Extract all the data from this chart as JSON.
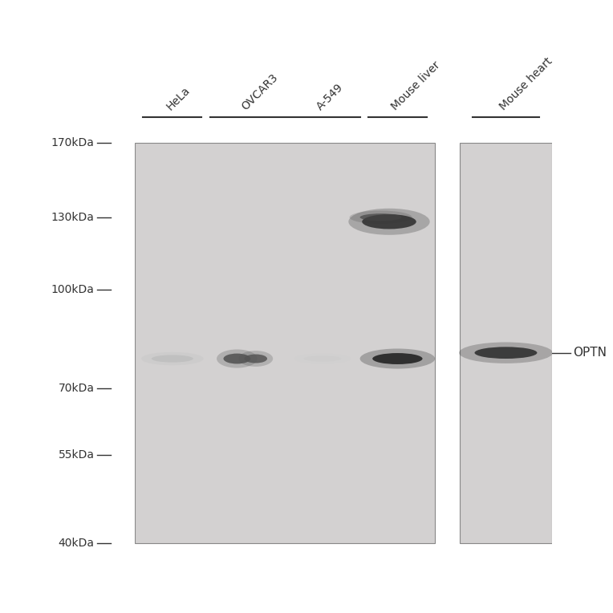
{
  "background_color": "#ffffff",
  "gel_bg_color": "#d0cece",
  "gel_bg_color2": "#c8c6c6",
  "lane_labels": [
    "HeLa",
    "OVCAR3",
    "A-549",
    "Mouse liver",
    "Mouse heart"
  ],
  "mw_markers": [
    "170kDa",
    "130kDa",
    "100kDa",
    "70kDa",
    "55kDa",
    "40kDa"
  ],
  "mw_values": [
    170,
    130,
    100,
    70,
    55,
    40
  ],
  "optn_label": "OPTN",
  "gel1_xlim": [
    0,
    4
  ],
  "gel2_xlim": [
    4,
    5
  ],
  "ylim": [
    35,
    185
  ],
  "panel1_lanes": [
    0,
    1,
    2,
    3
  ],
  "panel2_lanes": [
    4
  ],
  "band_color_dark": "#1a1a1a",
  "band_color_med": "#555555",
  "band_color_light": "#aaaaaa",
  "band_color_faint": "#cccccc"
}
